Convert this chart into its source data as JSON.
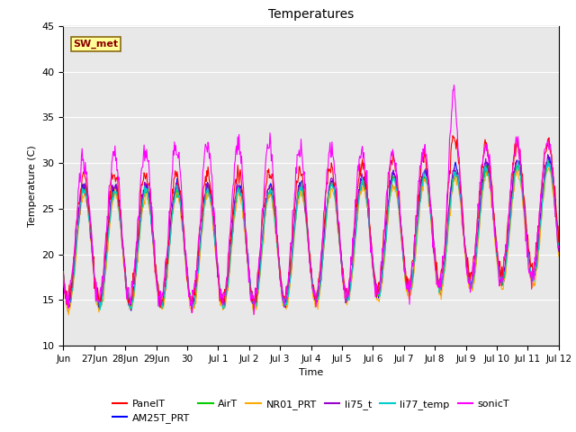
{
  "title": "Temperatures",
  "xlabel": "Time",
  "ylabel": "Temperature (C)",
  "ylim": [
    10,
    45
  ],
  "background_color": "#ffffff",
  "plot_bg_color": "#e8e8e8",
  "series": {
    "PanelT": {
      "color": "#ff0000"
    },
    "AM25T_PRT": {
      "color": "#0000ff"
    },
    "AirT": {
      "color": "#00cc00"
    },
    "NR01_PRT": {
      "color": "#ffaa00"
    },
    "li75_t": {
      "color": "#9900cc"
    },
    "li77_temp": {
      "color": "#00cccc"
    },
    "sonicT": {
      "color": "#ff00ff"
    }
  },
  "xtick_labels": [
    "Jun",
    "27Jun",
    "28Jun",
    "29Jun",
    "30",
    "Jul 1",
    "Jul 2",
    "Jul 3",
    "Jul 4",
    "Jul 5",
    "Jul 6",
    "Jul 7",
    "Jul 8",
    "Jul 9",
    "Jul 10",
    "Jul 11",
    "Jul 12"
  ],
  "xtick_positions": [
    0,
    1,
    2,
    3,
    4,
    5,
    6,
    7,
    8,
    9,
    10,
    11,
    12,
    13,
    14,
    15,
    16
  ],
  "ytick_positions": [
    10,
    15,
    20,
    25,
    30,
    35,
    40,
    45
  ],
  "annotation_text": "SW_met",
  "n_days": 16,
  "seed": 12,
  "base_min": 15.0,
  "base_max_panel": 29.0,
  "base_max_others": 27.5,
  "base_max_sonic": 30.0,
  "sonic_extra_peak": 3.5,
  "late_start_day": 7,
  "late_scale": 0.4,
  "late_max_boost": 9.0,
  "sonic_late_scale": 0.7
}
